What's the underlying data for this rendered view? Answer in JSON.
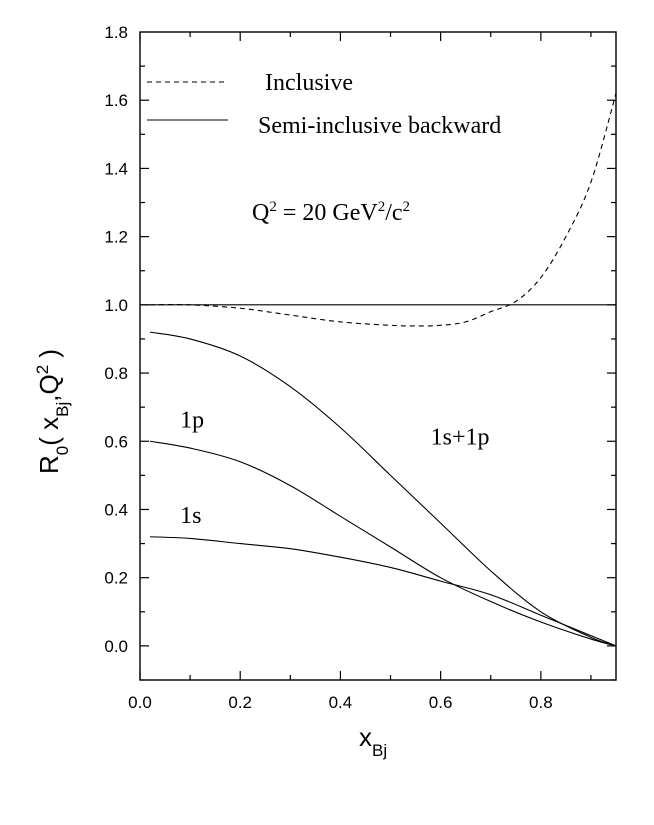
{
  "chart_data": {
    "type": "line",
    "xlim": [
      0.0,
      0.95
    ],
    "ylim": [
      -0.1,
      1.8
    ],
    "x_ticks": [
      "0.0",
      "0.2",
      "0.4",
      "0.6",
      "0.8"
    ],
    "y_ticks": [
      "0.0",
      "0.2",
      "0.4",
      "0.6",
      "0.8",
      "1.0",
      "1.2",
      "1.4",
      "1.6",
      "1.8"
    ],
    "xlabel": {
      "main": "x",
      "sub": "Bj"
    },
    "ylabel": {
      "r": "R",
      "r_sub": "0",
      "open": "( x",
      "x_sub": "Bj",
      "rest": ",Q",
      "sup": "2",
      "close": " )"
    },
    "legend": {
      "position": "top-left",
      "entries": [
        {
          "label": "Inclusive",
          "style": "dashed"
        },
        {
          "label": "Semi-inclusive backward",
          "style": "solid"
        }
      ]
    },
    "annotation": {
      "q": "Q",
      "q_sup": "2",
      "mid": " = 20 GeV",
      "unit_sup": "2",
      "unit_tail": "/c",
      "tail_sup": "2"
    },
    "series": [
      {
        "name": "Inclusive",
        "style": "dashed",
        "x": [
          0.02,
          0.1,
          0.2,
          0.3,
          0.4,
          0.5,
          0.55,
          0.6,
          0.65,
          0.7,
          0.75,
          0.8,
          0.85,
          0.9,
          0.95
        ],
        "y": [
          1.0,
          1.0,
          0.99,
          0.97,
          0.95,
          0.94,
          0.938,
          0.94,
          0.95,
          0.98,
          1.01,
          1.08,
          1.2,
          1.36,
          1.62
        ]
      },
      {
        "name": "Semi-inclusive backward",
        "style": "solid",
        "x": [
          0.0,
          0.95
        ],
        "y": [
          1.0,
          1.0
        ]
      },
      {
        "name": "1s+1p",
        "style": "solid",
        "x": [
          0.02,
          0.1,
          0.2,
          0.3,
          0.4,
          0.5,
          0.6,
          0.7,
          0.8,
          0.9,
          0.95
        ],
        "y": [
          0.92,
          0.9,
          0.85,
          0.76,
          0.64,
          0.5,
          0.36,
          0.22,
          0.1,
          0.025,
          0.0
        ]
      },
      {
        "name": "1p",
        "style": "solid",
        "x": [
          0.02,
          0.1,
          0.2,
          0.3,
          0.4,
          0.5,
          0.6,
          0.7,
          0.8,
          0.9,
          0.95
        ],
        "y": [
          0.6,
          0.58,
          0.54,
          0.47,
          0.38,
          0.29,
          0.2,
          0.13,
          0.07,
          0.02,
          0.0
        ]
      },
      {
        "name": "1s",
        "style": "solid",
        "x": [
          0.02,
          0.1,
          0.2,
          0.3,
          0.4,
          0.5,
          0.6,
          0.7,
          0.8,
          0.9,
          0.95
        ],
        "y": [
          0.32,
          0.315,
          0.3,
          0.285,
          0.26,
          0.23,
          0.19,
          0.15,
          0.09,
          0.03,
          0.0
        ]
      }
    ],
    "curve_labels": [
      {
        "text": "1s+1p",
        "x": 0.58,
        "y": 0.59
      },
      {
        "text": "1p",
        "x": 0.08,
        "y": 0.64
      },
      {
        "text": "1s",
        "x": 0.08,
        "y": 0.36
      }
    ]
  }
}
